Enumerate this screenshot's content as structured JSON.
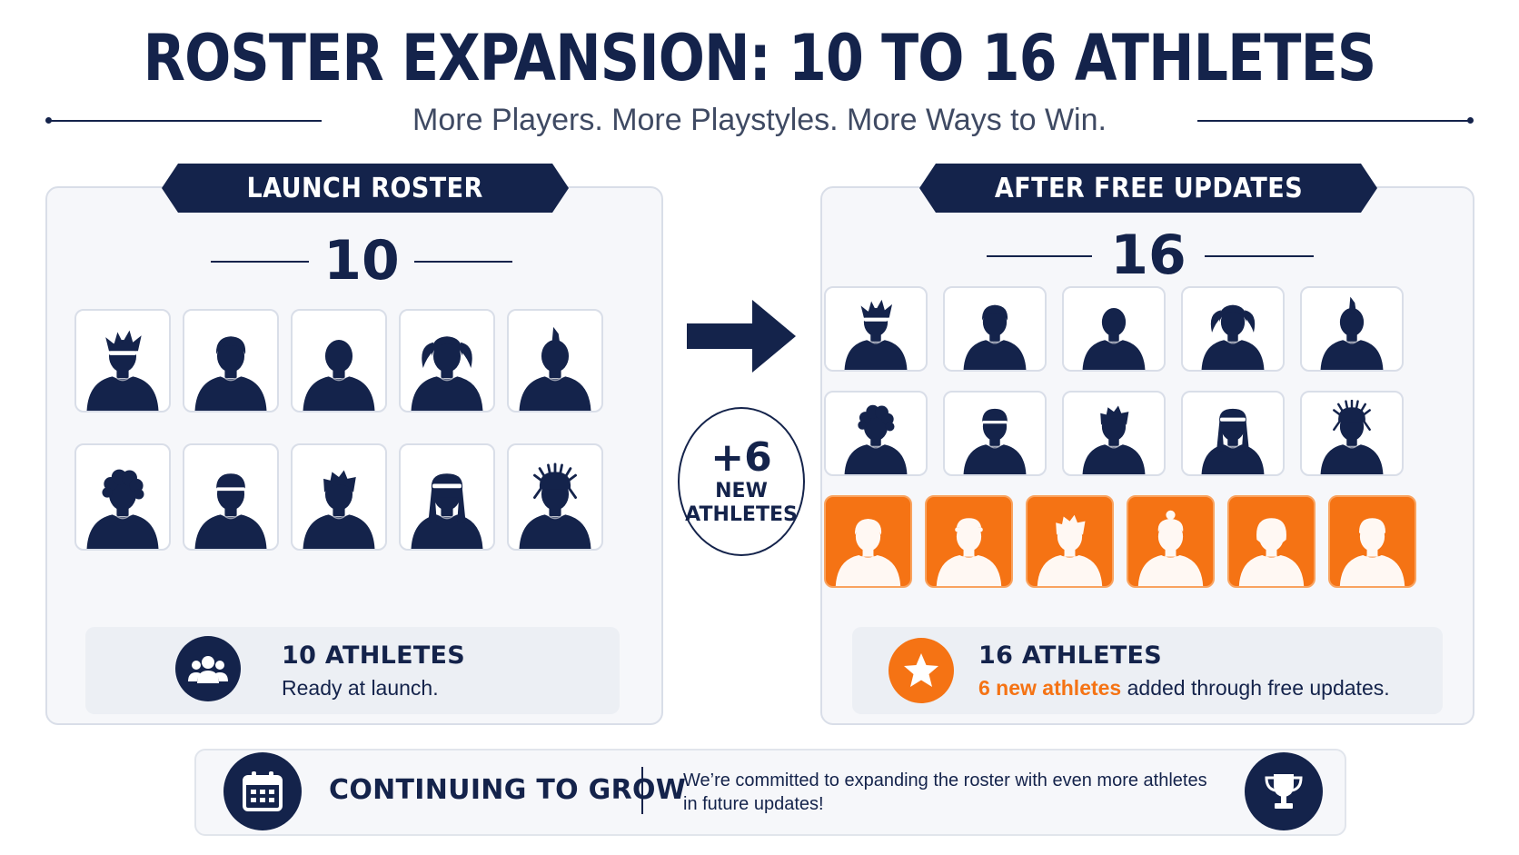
{
  "header": {
    "title": "ROSTER EXPANSION: 10 TO 16 ATHLETES",
    "subtitle": "More Players. More Playstyles. More Ways to Win."
  },
  "launch": {
    "label": "LAUNCH ROSTER",
    "count": "10",
    "athletes": [
      "spiky-hair-headband",
      "short-hair",
      "bald",
      "ponytail",
      "mohawk",
      "curly-hair",
      "cap",
      "spiky-hair",
      "long-hair-headband",
      "dreadlocks"
    ],
    "info_title": "10 ATHLETES",
    "info_sub": "Ready at launch.",
    "icon": "group-icon"
  },
  "middle": {
    "plus": "+6",
    "line1": "NEW",
    "line2": "ATHLETES",
    "icon": "arrow-right-icon"
  },
  "after": {
    "label": "AFTER FREE UPDATES",
    "count": "16",
    "new_athletes": [
      "short-hair",
      "visor",
      "spiky-hair",
      "bun",
      "bob-hair",
      "cap"
    ],
    "info_title": "16 ATHLETES",
    "info_highlight": "6 new athletes",
    "info_rest": " added through free updates.",
    "icon": "star-icon"
  },
  "footer": {
    "title": "CONTINUING TO GROW",
    "text_line1": "We’re committed to expanding the roster with even more athletes",
    "text_line2": "in future updates!",
    "left_icon": "calendar-icon",
    "right_icon": "trophy-icon"
  },
  "colors": {
    "navy": "#14234b",
    "orange": "#f57314",
    "panel": "#f6f7fa"
  }
}
